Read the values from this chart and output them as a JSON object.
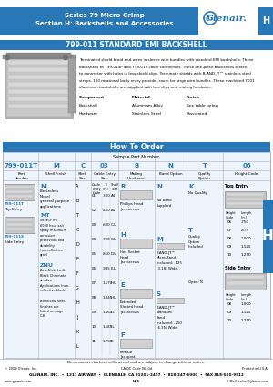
{
  "bg_color": "#ffffff",
  "header_bg": "#2878b8",
  "header_text_color": "#ffffff",
  "header_line1": "Series 79 Micro-Crimp",
  "header_line2": "Section H: Backshells and Accessories",
  "section_label_text": "799-011 STANDARD EMI BACKSHELL",
  "how_to_order_text": "How To Order",
  "sample_part_text": "Sample Part Number",
  "sample_values": [
    "799-011T",
    "M",
    "C",
    "03",
    "B",
    "N",
    "T",
    "06"
  ],
  "col_headers": [
    "Part\nNumber",
    "Shell Finish",
    "Shell\nSize",
    "Cable Entry\nSize",
    "Mating\nHardware",
    "Band Option",
    "Qualify\nOption",
    "Height Code"
  ],
  "entry_codes": [
    "01",
    "02",
    "03",
    "04",
    "05",
    "06",
    "07",
    "08",
    "09",
    "10",
    "11"
  ],
  "entry_e": [
    ".300",
    ".450",
    ".600",
    ".700",
    ".850",
    ".985",
    "1.170",
    "1.345",
    "1.460",
    "1.585",
    "1.750"
  ],
  "shell_sizes": [
    "A4",
    "A4",
    "C-L",
    "C-L",
    "D-L",
    "E-L",
    "H-L",
    "H-L",
    "I-L",
    "I-L",
    "K"
  ],
  "height_top_entry": [
    [
      "06",
      ".750"
    ],
    [
      "07",
      ".875"
    ],
    [
      "08",
      "1.000"
    ],
    [
      "09",
      "1.125"
    ],
    [
      "10",
      "1.250"
    ]
  ],
  "height_side_entry": [
    [
      "08",
      "1.000"
    ],
    [
      "09",
      "1.125"
    ],
    [
      "10",
      "1.250"
    ]
  ],
  "footer_line1": "GLENAIR, INC.  •  1211 AIR WAY  •  GLENDALE, CA 91201-2497  •  818-247-6000  •  FAX 818-500-9912",
  "footer_line2": "www.glenair.com",
  "footer_line3": "H-3",
  "footer_line4": "E-Mail: sales@glenair.com",
  "footer_note": "© 2009 Glenair, Inc.",
  "footer_note2": "CA-QC Code 0630d",
  "footer_note3": "Printed in U.S.A.",
  "dims_note": "Dimensions in inches (millimeters) and are subject to change without notice.",
  "desc_lines": [
    "Terminated shield braid and wires in sleeve wire bundles with standard EMI backshells. These",
    "backshells fit 799-024P and 799-015 cable connectors. These one-piece backshells attach",
    "to connector with holes in less shield clips. Terminate shields with B-AND-JT™ stainless steel",
    "straps. 180 rotational body entry provides room for large wire bundles. These machined 7001",
    "aluminum backshells are supplied with two clips and mating hardware."
  ],
  "comp_rows": [
    [
      "Component",
      "Material",
      "Finish"
    ],
    [
      "Backshell",
      "Aluminum Alloy",
      "See table below"
    ],
    [
      "Hardware",
      "Stainless Steel",
      "Passivated"
    ]
  ],
  "blue": "#2878b8",
  "light_blue_bg": "#ddeeff",
  "table_bg": "#eef4fb"
}
